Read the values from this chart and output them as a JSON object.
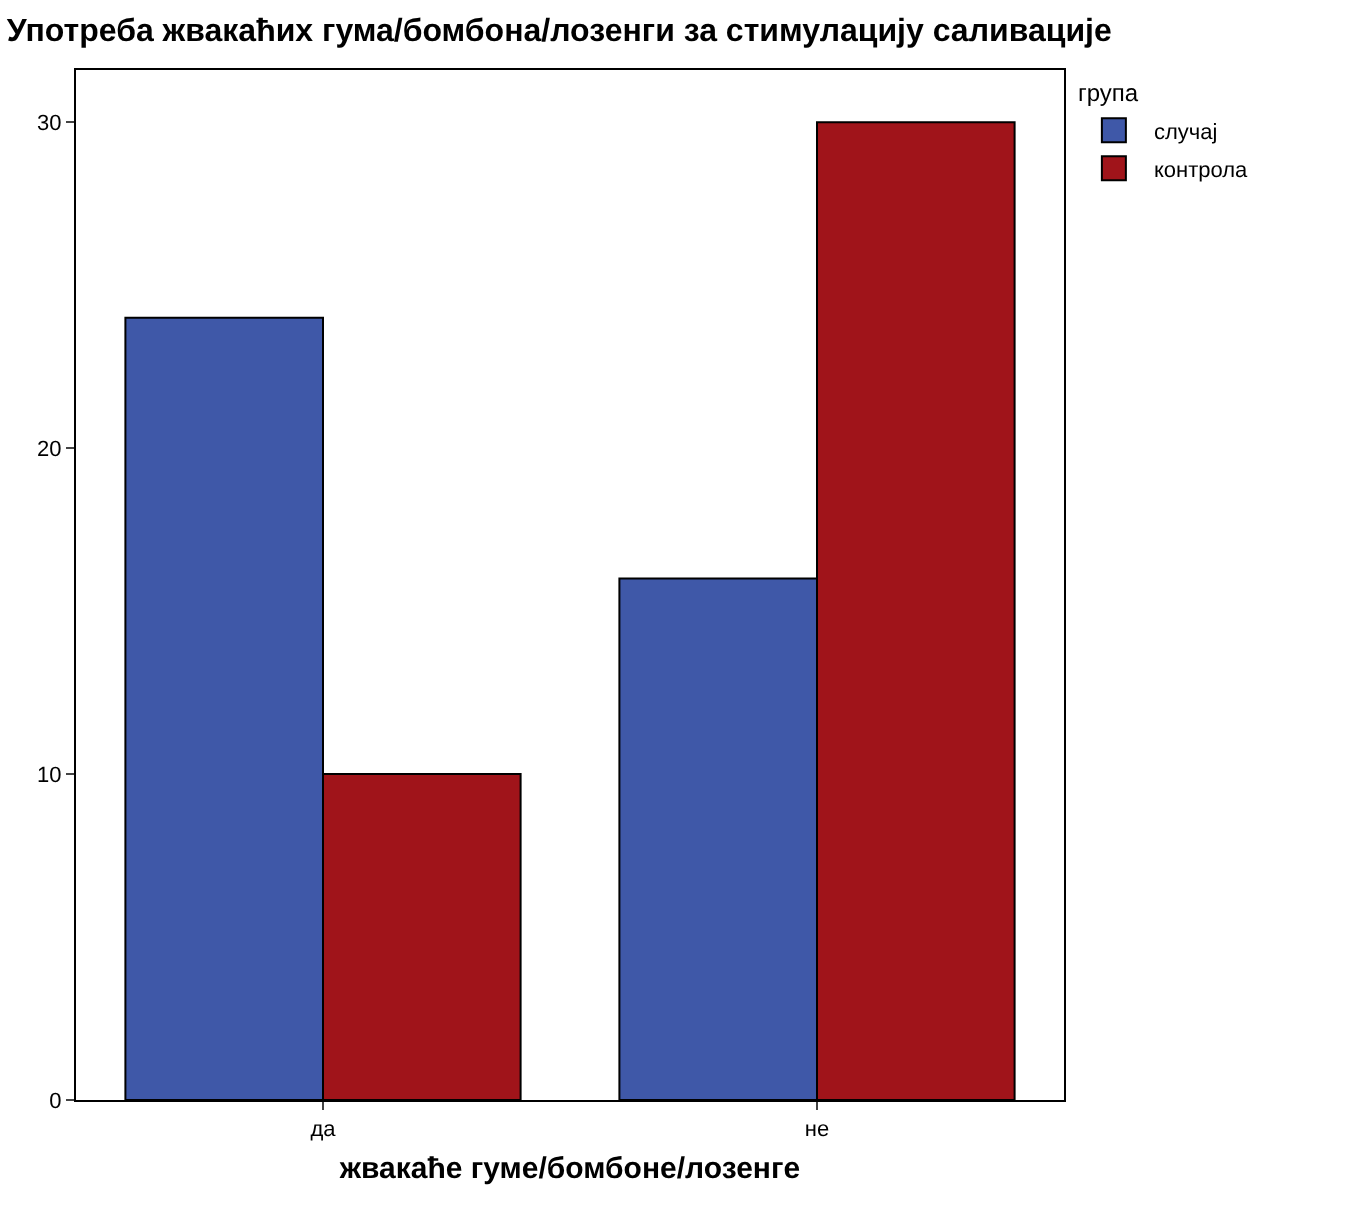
{
  "chart_data": {
    "type": "bar",
    "title": "Употреба жвакаћих гума/бомбона/лозенги за стимулацију саливације",
    "xlabel": "жвакаће гуме/бомбоне/лозенге",
    "legend_title": "група",
    "categories": [
      "да",
      "не"
    ],
    "series": [
      {
        "name": "случај",
        "color": "#3f58a8",
        "values": [
          24,
          16
        ]
      },
      {
        "name": "контрола",
        "color": "#a0141a",
        "values": [
          10,
          30
        ]
      }
    ],
    "ylim": [
      0,
      31.6
    ],
    "yticks": [
      0,
      10,
      20,
      30
    ],
    "grid": false,
    "legend": "top right"
  }
}
